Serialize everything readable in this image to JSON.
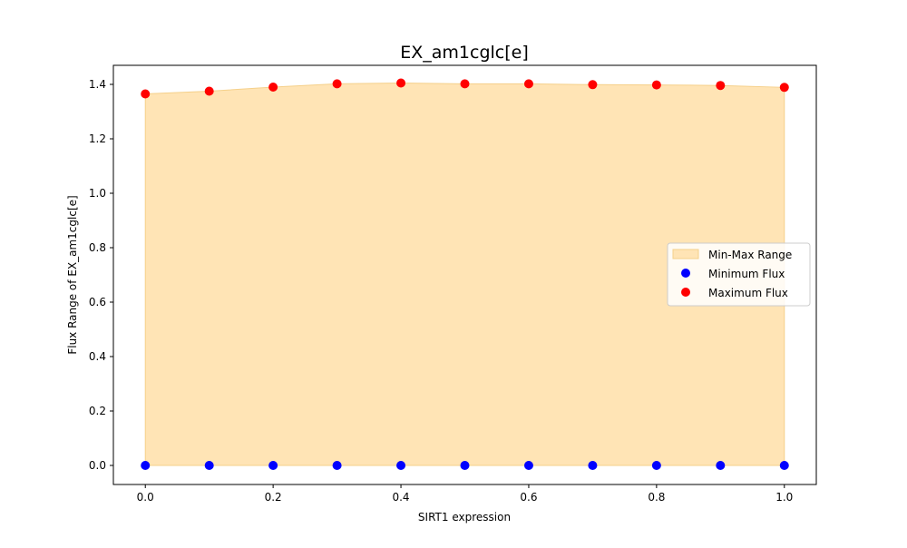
{
  "chart_data": {
    "type": "area",
    "title": "EX_am1cglc[e]",
    "xlabel": "SIRT1 expression",
    "ylabel": "Flux Range of EX_am1cglc[e]",
    "xlim": [
      -0.05,
      1.05
    ],
    "ylim": [
      -0.07,
      1.47
    ],
    "xticks": [
      0.0,
      0.2,
      0.4,
      0.6,
      0.8,
      1.0
    ],
    "xtick_labels": [
      "0.0",
      "0.2",
      "0.4",
      "0.6",
      "0.8",
      "1.0"
    ],
    "yticks": [
      0.0,
      0.2,
      0.4,
      0.6,
      0.8,
      1.0,
      1.2,
      1.4
    ],
    "ytick_labels": [
      "0.0",
      "0.2",
      "0.4",
      "0.6",
      "0.8",
      "1.0",
      "1.2",
      "1.4"
    ],
    "x": [
      0.0,
      0.1,
      0.2,
      0.3,
      0.4,
      0.5,
      0.6,
      0.7,
      0.8,
      0.9,
      1.0
    ],
    "series": [
      {
        "name": "Min-Max Range",
        "kind": "fill_between",
        "color": "#ffe4b5"
      },
      {
        "name": "Minimum Flux",
        "kind": "scatter",
        "color": "#0000ff",
        "values": [
          0.0,
          0.0,
          0.0,
          0.0,
          0.0,
          0.0,
          0.0,
          0.0,
          0.0,
          0.0,
          0.0
        ]
      },
      {
        "name": "Maximum Flux",
        "kind": "scatter",
        "color": "#ff0000",
        "values": [
          1.365,
          1.375,
          1.39,
          1.402,
          1.405,
          1.402,
          1.402,
          1.399,
          1.398,
          1.396,
          1.389
        ]
      }
    ],
    "legend": {
      "position": "center-right",
      "entries": [
        "Min-Max Range",
        "Minimum Flux",
        "Maximum Flux"
      ]
    },
    "grid": false
  }
}
